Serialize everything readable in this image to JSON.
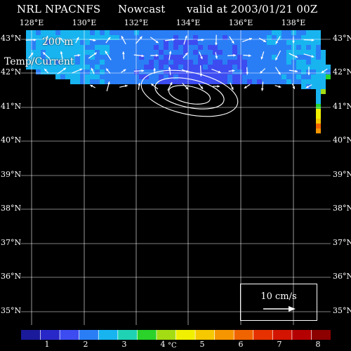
{
  "header": {
    "source": "NRL NPACNFS",
    "product": "Nowcast",
    "valid": "valid at 2003/01/21 00Z"
  },
  "overlay": {
    "depth": "200 m",
    "fields": "Temp/Current"
  },
  "axes": {
    "longitude_labels": [
      "128°E",
      "130°E",
      "132°E",
      "134°E",
      "136°E",
      "138°E"
    ],
    "latitude_labels": [
      "43°N",
      "42°N",
      "41°N",
      "40°N",
      "39°N",
      "38°N",
      "37°N",
      "36°N",
      "35°N"
    ]
  },
  "scale": {
    "label": "10 cm/s"
  },
  "colorbar": {
    "ticks": [
      "1",
      "2",
      "3",
      "4",
      "5",
      "6",
      "7",
      "8"
    ],
    "unit": "°C",
    "colors": [
      "#1a1a9a",
      "#2828c8",
      "#3c4cf0",
      "#2a7ef5",
      "#18b4f0",
      "#20d2b4",
      "#2ad22a",
      "#a4dc14",
      "#f0f000",
      "#f5c800",
      "#f59600",
      "#f06400",
      "#e63200",
      "#d21400",
      "#b40000",
      "#8c0000"
    ]
  },
  "map": {
    "land_color": "#000000",
    "arrow_color": "#ffffff",
    "grid_color": "#ffffff"
  }
}
